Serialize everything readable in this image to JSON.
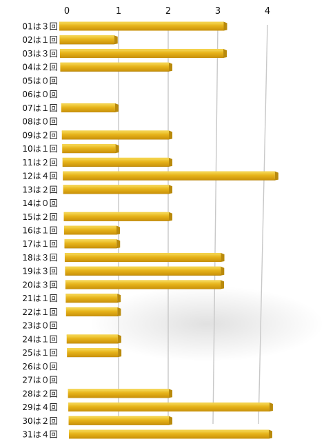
{
  "chart_data": {
    "type": "bar",
    "orientation": "horizontal",
    "categories": [
      "01は３回",
      "02は１回",
      "03は３回",
      "04は２回",
      "05は０回",
      "06は０回",
      "07は１回",
      "08は０回",
      "09は２回",
      "10は１回",
      "11は２回",
      "12は４回",
      "13は２回",
      "14は０回",
      "15は２回",
      "16は１回",
      "17は１回",
      "18は３回",
      "19は３回",
      "20は３回",
      "21は１回",
      "22は１回",
      "23は０回",
      "24は１回",
      "25は１回",
      "26は０回",
      "27は０回",
      "28は２回",
      "29は４回",
      "30は２回",
      "31は４回"
    ],
    "values": [
      3,
      1,
      3,
      2,
      0,
      0,
      1,
      0,
      2,
      1,
      2,
      4,
      2,
      0,
      2,
      1,
      1,
      3,
      3,
      3,
      1,
      1,
      0,
      1,
      1,
      0,
      0,
      2,
      4,
      2,
      4
    ],
    "xticks": [
      "0",
      "1",
      "2",
      "3",
      "4"
    ],
    "xlim": [
      0,
      4
    ],
    "title": "",
    "xlabel": "",
    "ylabel": "",
    "grid": true,
    "legend": "none",
    "colors": {
      "bar_top": "#f3d14a",
      "bar_face": "#e2ac14",
      "bar_dark": "#6b4e06",
      "grid": "#c8c8c8"
    }
  }
}
